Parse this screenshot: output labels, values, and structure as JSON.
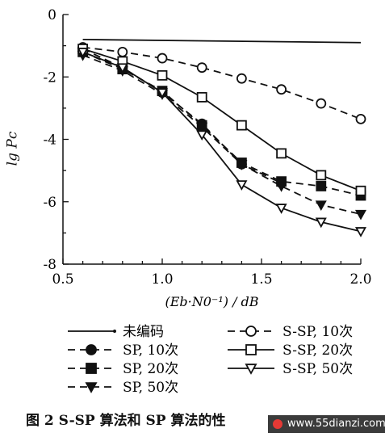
{
  "chart_data": {
    "type": "line",
    "ylabel": "lg Pc",
    "xlabel": "(Eb·N0⁻¹) / dB",
    "xlim": [
      0.5,
      2.0
    ],
    "ylim": [
      -8,
      0
    ],
    "xticks": [
      "0.5",
      "1.0",
      "1.5",
      "2.0"
    ],
    "yticks": [
      "0",
      "-2",
      "-4",
      "-6",
      "-8"
    ],
    "legend_position": "bottom",
    "series": [
      {
        "name": "未编码",
        "style": "solid",
        "marker": "none",
        "x": [
          0.6,
          2.0
        ],
        "y": [
          -0.8,
          -0.9
        ]
      },
      {
        "name": "SP, 10次",
        "style": "dashed",
        "marker": "filled-circle",
        "x": [
          0.6,
          0.8,
          1.0,
          1.2,
          1.4,
          1.6
        ],
        "y": [
          -1.1,
          -1.7,
          -2.5,
          -3.5,
          -4.8,
          -5.4
        ]
      },
      {
        "name": "SP, 20次",
        "style": "dashed",
        "marker": "filled-square",
        "x": [
          0.6,
          0.8,
          1.0,
          1.2,
          1.4,
          1.6,
          1.8,
          2.0
        ],
        "y": [
          -1.2,
          -1.75,
          -2.45,
          -3.55,
          -4.75,
          -5.35,
          -5.5,
          -5.8
        ]
      },
      {
        "name": "SP, 50次",
        "style": "dashed",
        "marker": "filled-triangle-down",
        "x": [
          0.6,
          0.8,
          1.0,
          1.2,
          1.4,
          1.6,
          1.8,
          2.0
        ],
        "y": [
          -1.3,
          -1.8,
          -2.55,
          -3.6,
          -4.8,
          -5.5,
          -6.1,
          -6.4
        ]
      },
      {
        "name": "S-SP, 10次",
        "style": "dashed",
        "marker": "open-circle",
        "x": [
          0.6,
          0.8,
          1.0,
          1.2,
          1.4,
          1.6,
          1.8,
          2.0
        ],
        "y": [
          -1.05,
          -1.2,
          -1.4,
          -1.7,
          -2.05,
          -2.4,
          -2.85,
          -3.35
        ]
      },
      {
        "name": "S-SP, 20次",
        "style": "solid",
        "marker": "open-square",
        "x": [
          0.6,
          0.8,
          1.0,
          1.2,
          1.4,
          1.6,
          1.8,
          2.0
        ],
        "y": [
          -1.1,
          -1.5,
          -1.95,
          -2.65,
          -3.55,
          -4.45,
          -5.15,
          -5.65
        ]
      },
      {
        "name": "S-SP, 50次",
        "style": "solid",
        "marker": "open-triangle-down",
        "x": [
          0.6,
          0.8,
          1.0,
          1.2,
          1.4,
          1.6,
          1.8,
          2.0
        ],
        "y": [
          -1.2,
          -1.7,
          -2.5,
          -3.85,
          -5.45,
          -6.2,
          -6.65,
          -6.95
        ]
      }
    ]
  },
  "caption": "图 2   S-SP 算法和 SP 算法的性",
  "watermark": "www.55dianzi.com"
}
